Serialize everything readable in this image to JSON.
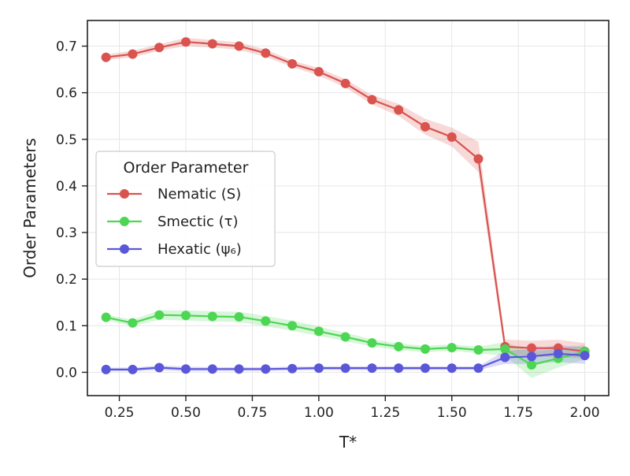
{
  "chart_data": {
    "type": "line",
    "xlabel": "T*",
    "ylabel": "Order Parameters",
    "xlim": [
      0.13,
      2.09
    ],
    "ylim": [
      -0.05,
      0.755
    ],
    "xticks": [
      0.25,
      0.5,
      0.75,
      1.0,
      1.25,
      1.5,
      1.75,
      2.0
    ],
    "xtick_labels": [
      "0.25",
      "0.50",
      "0.75",
      "1.00",
      "1.25",
      "1.50",
      "1.75",
      "2.00"
    ],
    "yticks": [
      0.0,
      0.1,
      0.2,
      0.3,
      0.4,
      0.5,
      0.6,
      0.7
    ],
    "ytick_labels": [
      "0.0",
      "0.1",
      "0.2",
      "0.3",
      "0.4",
      "0.5",
      "0.6",
      "0.7"
    ],
    "grid": true,
    "legend": {
      "title": "Order Parameter",
      "placement": "center-left"
    },
    "x": [
      0.2,
      0.3,
      0.4,
      0.5,
      0.6,
      0.7,
      0.8,
      0.9,
      1.0,
      1.1,
      1.2,
      1.3,
      1.4,
      1.5,
      1.6,
      1.7,
      1.8,
      1.9,
      2.0
    ],
    "series": [
      {
        "name": "Nematic (S)",
        "color": "#d9534f",
        "values": [
          0.676,
          0.683,
          0.697,
          0.709,
          0.705,
          0.7,
          0.685,
          0.662,
          0.645,
          0.62,
          0.585,
          0.563,
          0.527,
          0.505,
          0.458,
          0.055,
          0.052,
          0.052,
          0.045
        ],
        "lower": [
          0.67,
          0.676,
          0.69,
          0.7,
          0.697,
          0.692,
          0.677,
          0.655,
          0.637,
          0.611,
          0.575,
          0.55,
          0.51,
          0.485,
          0.43,
          0.04,
          0.035,
          0.032,
          0.03
        ],
        "upper": [
          0.682,
          0.69,
          0.704,
          0.718,
          0.713,
          0.708,
          0.693,
          0.669,
          0.653,
          0.629,
          0.595,
          0.576,
          0.544,
          0.525,
          0.495,
          0.07,
          0.068,
          0.07,
          0.063
        ]
      },
      {
        "name": "Smectic (τ)",
        "color": "#4cd653",
        "values": [
          0.118,
          0.106,
          0.123,
          0.122,
          0.12,
          0.119,
          0.11,
          0.1,
          0.088,
          0.076,
          0.063,
          0.055,
          0.05,
          0.053,
          0.048,
          0.05,
          0.016,
          0.03,
          0.044
        ],
        "lower": [
          0.112,
          0.099,
          0.113,
          0.111,
          0.109,
          0.108,
          0.099,
          0.089,
          0.078,
          0.067,
          0.055,
          0.048,
          0.043,
          0.046,
          0.041,
          0.035,
          -0.012,
          0.01,
          0.028
        ],
        "upper": [
          0.124,
          0.113,
          0.133,
          0.133,
          0.131,
          0.13,
          0.121,
          0.111,
          0.098,
          0.085,
          0.071,
          0.062,
          0.057,
          0.06,
          0.055,
          0.065,
          0.044,
          0.05,
          0.06
        ]
      },
      {
        "name": "Hexatic (ψ₆)",
        "color": "#5b57d9",
        "values": [
          0.006,
          0.006,
          0.01,
          0.007,
          0.007,
          0.007,
          0.007,
          0.008,
          0.009,
          0.009,
          0.009,
          0.009,
          0.009,
          0.009,
          0.009,
          0.032,
          0.034,
          0.04,
          0.036
        ],
        "lower": [
          0.002,
          0.002,
          0.005,
          0.002,
          0.003,
          0.003,
          0.003,
          0.004,
          0.005,
          0.005,
          0.005,
          0.005,
          0.005,
          0.005,
          0.005,
          0.018,
          0.018,
          0.022,
          0.018
        ],
        "upper": [
          0.01,
          0.01,
          0.015,
          0.012,
          0.011,
          0.011,
          0.011,
          0.012,
          0.013,
          0.013,
          0.013,
          0.013,
          0.013,
          0.013,
          0.013,
          0.046,
          0.05,
          0.058,
          0.054
        ]
      }
    ]
  }
}
